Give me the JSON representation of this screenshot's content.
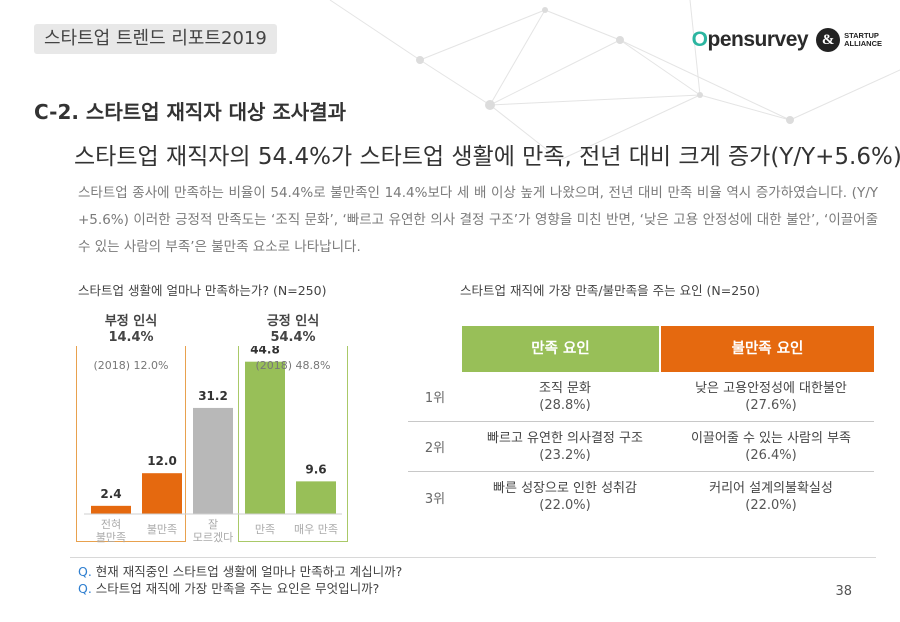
{
  "header": {
    "report_tag": "스타트업 트렌드 리포트2019",
    "logo": {
      "brand": "opensurvey",
      "brand_o": "O",
      "brand_rest": "pensurvey",
      "partner_line1": "STARTUP",
      "partner_line2": "ALLIANCE",
      "amp": "&"
    }
  },
  "section_title": "C-2. 스타트업 재직자 대상 조사결과",
  "headline": "스타트업 재직자의 54.4%가 스타트업 생활에 만족, 전년 대비 크게 증가(Y/Y+5.6%)",
  "body_text": "스타트업 종사에 만족하는 비율이 54.4%로 불만족인 14.4%보다 세 배 이상 높게 나왔으며, 전년 대비 만족 비율 역시 증가하였습니다. (Y/Y +5.6%) 이러한 긍정적 만족도는 ‘조직 문화’, ‘빠르고 유연한 의사 결정 구조’가 영향을 미친 반면, ‘낮은 고용 안정성에 대한 불안’, ‘이끌어줄 수 있는 사람의 부족’은 불만족 요소로 나타납니다.",
  "chart_question": "스타트업 생활에 얼마나 만족하는가? (N=250)",
  "table_question": "스타트업 재직에 가장 만족/불만족을 주는 요인 (N=250)",
  "groups": {
    "negative": {
      "title": "부정 인식",
      "value": "14.4%",
      "prev": "(2018) 12.0%"
    },
    "positive": {
      "title": "긍정 인식",
      "value": "54.4%",
      "prev": "(2018) 48.8%"
    }
  },
  "chart_data": {
    "type": "bar",
    "title": "스타트업 생활에 얼마나 만족하는가? (N=250)",
    "categories": [
      "전혀\n불만족",
      "불만족",
      "잘\n모르겠다",
      "만족",
      "매우 만족"
    ],
    "values": [
      2.4,
      12.0,
      31.2,
      44.8,
      9.6
    ],
    "value_labels": [
      "2.4",
      "12.0",
      "31.2",
      "44.8",
      "9.6"
    ],
    "colors": [
      "#e5690f",
      "#e5690f",
      "#b8b8b8",
      "#98bf58",
      "#98bf58"
    ],
    "ylim": [
      0,
      50
    ],
    "grid": false,
    "xlabel": "",
    "ylabel": ""
  },
  "table": {
    "headers": {
      "satisfaction": "만족 요인",
      "dissatisfaction": "불만족 요인"
    },
    "rows": [
      {
        "rank": "1위",
        "sat": "조직 문화",
        "sat_pct": "(28.8%)",
        "dis": "낮은 고용안정성에 대한불안",
        "dis_pct": "(27.6%)"
      },
      {
        "rank": "2위",
        "sat": "빠르고 유연한 의사결정 구조",
        "sat_pct": "(23.2%)",
        "dis": "이끌어줄 수 있는 사람의 부족",
        "dis_pct": "(26.4%)"
      },
      {
        "rank": "3위",
        "sat": "빠른 성장으로 인한 성취감",
        "sat_pct": "(22.0%)",
        "dis": "커리어 설계의불확실성",
        "dis_pct": "(22.0%)"
      }
    ]
  },
  "footnotes": [
    {
      "q": "Q.",
      "text": " 현재 재직중인 스타트업 생활에 얼마나 만족하고 계십니까?"
    },
    {
      "q": "Q.",
      "text": " 스타트업 재직에 가장 만족을 주는 요인은 무엇입니까?"
    }
  ],
  "page_number": "38",
  "colors": {
    "accent_orange": "#e5690f",
    "accent_green": "#98bf58",
    "neutral_gray": "#b8b8b8"
  }
}
